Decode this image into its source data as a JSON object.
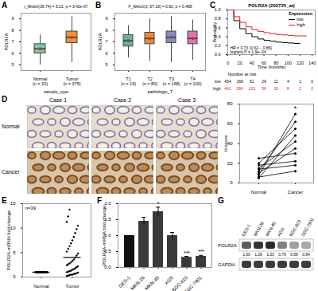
{
  "chart_data": [
    {
      "panel": "A",
      "type": "box",
      "title": "t_Welch(36.74) = 6.21, p = 3.42e-07",
      "x_label": "sample_type",
      "y_label": "POLR2A",
      "categories": [
        "Normal\n(n = 32)",
        "Tumor\n(n = 375)"
      ],
      "colors": [
        "#7ccba8",
        "#f0913f"
      ],
      "boxes": [
        {
          "min": 5.0,
          "q1": 6.0,
          "median": 6.4,
          "q3": 6.8,
          "max": 7.6,
          "mean": 6.4
        },
        {
          "min": 5.2,
          "q1": 6.9,
          "median": 7.4,
          "q3": 7.9,
          "max": 9.2,
          "mean": 7.4
        }
      ],
      "ylim": [
        4.5,
        9.5
      ],
      "yticks": [
        5,
        6,
        7,
        8,
        9
      ]
    },
    {
      "panel": "B",
      "type": "box",
      "title": "F_Welch(3, 57.19) = 0.82, p = 0.488",
      "x_label": "pathologic_T",
      "y_label": "POLR2A",
      "categories": [
        "T1\n(n = 19)",
        "T2\n(n = 80)",
        "T3\n(n = 168)",
        "T4\n(n = 100)"
      ],
      "colors": [
        "#5fb89a",
        "#e8893c",
        "#7f8ec6",
        "#d977b0"
      ],
      "boxes": [
        {
          "min": 5.6,
          "q1": 6.6,
          "median": 7.1,
          "q3": 7.6,
          "max": 8.4,
          "mean": 7.1
        },
        {
          "min": 5.3,
          "q1": 6.8,
          "median": 7.3,
          "q3": 7.8,
          "max": 9.0,
          "mean": 7.3
        },
        {
          "min": 5.2,
          "q1": 6.9,
          "median": 7.4,
          "q3": 7.9,
          "max": 9.2,
          "mean": 7.4
        },
        {
          "min": 5.4,
          "q1": 6.8,
          "median": 7.3,
          "q3": 7.9,
          "max": 8.9,
          "mean": 7.3
        }
      ],
      "ylim": [
        4.5,
        9.5
      ],
      "yticks": [
        5,
        6,
        7,
        8,
        9
      ]
    },
    {
      "panel": "C",
      "type": "line",
      "line_style": "step",
      "title": "POLR2A (202725_at)",
      "x_label": "Time (months)",
      "y_label": "Probability",
      "x": [
        0,
        10,
        20,
        30,
        40,
        50,
        60,
        70,
        80,
        90,
        100,
        110,
        120,
        130,
        140
      ],
      "series": [
        {
          "name": "low",
          "color": "#000000",
          "values": [
            1,
            0.76,
            0.58,
            0.47,
            0.4,
            0.35,
            0.32,
            0.3,
            0.28,
            0.27,
            0.26,
            0.25,
            0.25,
            null,
            null
          ]
        },
        {
          "name": "high",
          "color": "#e41a1c",
          "values": [
            1,
            0.85,
            0.72,
            0.62,
            0.56,
            0.52,
            0.49,
            0.47,
            0.45,
            0.44,
            0.43,
            0.42,
            0.42,
            0.41,
            null
          ]
        }
      ],
      "legend": "topright",
      "legend_title": "Expression",
      "annotation": "HR = 0.73 (0.62 − 0.86)\nlogrank P = 1.9e−04",
      "xlim": [
        0,
        145
      ],
      "xticks": [
        0,
        20,
        40,
        60,
        80,
        100,
        120,
        140
      ],
      "ylim": [
        0,
        1
      ],
      "yticks": [
        {
          "value": 0,
          "label": "0.0"
        },
        0.2,
        0.4,
        0.6,
        0.8,
        {
          "value": 1,
          "label": "1.0"
        }
      ],
      "at_risk": {
        "title": "Number at risk",
        "x": [
          0,
          20,
          40,
          60,
          80,
          100,
          120,
          140
        ],
        "series": [
          {
            "name": "low",
            "values": [
              434,
              166,
              61,
              29,
              11,
              4,
              1,
              0
            ]
          },
          {
            "name": "high",
            "values": [
              441,
              264,
              123,
              56,
              19,
              8,
              2,
              0
            ]
          }
        ]
      }
    },
    {
      "type": "paired",
      "y_label": "H-score",
      "categories": [
        "Normal",
        "Cancer"
      ],
      "pairs": [
        [
          8,
          70
        ],
        [
          12,
          62
        ],
        [
          20,
          55
        ],
        [
          5,
          48
        ],
        [
          15,
          42
        ],
        [
          10,
          35
        ],
        [
          25,
          30
        ],
        [
          18,
          22
        ],
        [
          6,
          12
        ],
        [
          14,
          18
        ]
      ],
      "annotation": "*",
      "ylim": [
        0,
        80
      ],
      "yticks": [
        0,
        20,
        40,
        60,
        80
      ]
    },
    {
      "panel": "E",
      "type": "scatter",
      "y_label": "POLR2A-mRNA fold change",
      "categories": [
        "Normal",
        "Tumor"
      ],
      "values": [
        [
          1,
          1,
          1,
          1,
          1,
          1,
          1,
          1,
          1,
          1,
          1,
          1,
          1,
          1,
          1,
          1,
          1,
          1,
          1,
          1,
          1,
          1,
          1,
          1,
          1,
          1,
          1,
          1,
          1,
          1,
          1,
          1,
          1,
          1,
          1,
          1,
          1,
          1,
          1
        ],
        [
          0.2,
          0.3,
          0.4,
          0.5,
          0.5,
          0.6,
          0.7,
          0.8,
          0.9,
          1.0,
          1.1,
          1.2,
          1.3,
          1.5,
          1.6,
          1.8,
          2.0,
          2.2,
          2.4,
          2.6,
          2.8,
          3.0,
          3.3,
          3.6,
          4.0,
          4.4,
          4.8,
          5.2,
          5.8,
          6.3,
          6.9,
          7.5,
          8.2,
          9.0,
          9.8,
          10.5,
          11.3,
          12.4,
          13.8
        ]
      ],
      "means": [
        1,
        4.0
      ],
      "annotation": "n=39",
      "ylim": [
        0,
        15
      ],
      "yticks": [
        0,
        5,
        10,
        15
      ]
    },
    {
      "panel": "F",
      "type": "bar",
      "y_label": "POLR2A-mRNA fold change",
      "categories": [
        "GES-1",
        "MKN-28",
        "MKN-45",
        "AGS",
        "BGC-823",
        "SGC-7901"
      ],
      "values": [
        1,
        1.45,
        1.75,
        1.0,
        0.32,
        0.35
      ],
      "errors": [
        0,
        0.12,
        0.14,
        0.1,
        0.03,
        0.03
      ],
      "significance": [
        null,
        null,
        "*",
        null,
        "***",
        "***"
      ],
      "colors": [
        "#111111",
        "#3a3a3a",
        "#3a3a3a",
        "#3a3a3a",
        "#3a3a3a",
        "#3a3a3a"
      ],
      "ylim": [
        0,
        2
      ],
      "yticks": [
        {
          "value": 0,
          "label": "0.0"
        },
        0.5,
        {
          "value": 1,
          "label": "1.0"
        },
        1.5,
        {
          "value": 2,
          "label": "2.0"
        }
      ]
    }
  ],
  "ihc": {
    "panel": "D",
    "columns": [
      "Case 1",
      "Case 2",
      "Case 3"
    ],
    "rows": [
      "Normal",
      "Cancer"
    ]
  },
  "blot": {
    "panel": "G",
    "lanes": [
      "GES-1",
      "MKN-28",
      "MKN-45",
      "AGS",
      "BGC-823",
      "SGC-7901"
    ],
    "rows": [
      "POLR2A",
      "GAPDH"
    ],
    "values": [
      1,
      1.26,
      1.33,
      0.79,
      0.59,
      0.54
    ],
    "value_labels": [
      "1.00",
      "1.26",
      "1.33",
      "0.79",
      "0.59",
      "0.54"
    ]
  }
}
